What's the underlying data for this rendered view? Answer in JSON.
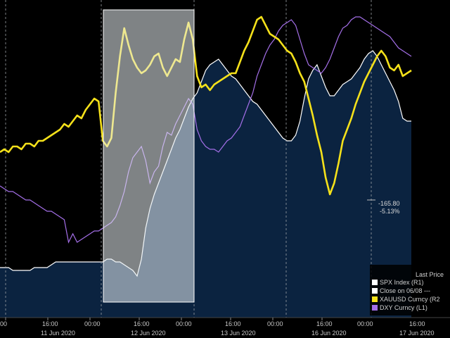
{
  "chart_data": {
    "type": "line",
    "background_color": "#000000",
    "grid": "dashed vertical day separators",
    "x_ticks": [
      "00",
      "16:00",
      "00:00",
      "16:00",
      "00:00",
      "16:00",
      "00:00",
      "16:00"
    ],
    "date_labels": [
      "11 Jun 2020",
      "12 Jun 2020",
      "13 Jun 2020",
      "16 Jun 2020",
      "17 Jun 2020"
    ],
    "series": [
      {
        "name": "SPX Index (R1)",
        "style": "area",
        "color": "#ffffff",
        "fill": "#0b2340",
        "values": [
          0.1,
          0.1,
          0.1,
          0.09,
          0.09,
          0.09,
          0.09,
          0.09,
          0.1,
          0.1,
          0.1,
          0.1,
          0.11,
          0.12,
          0.12,
          0.12,
          0.12,
          0.12,
          0.12,
          0.12,
          0.12,
          0.12,
          0.12,
          0.12,
          0.12,
          0.13,
          0.13,
          0.12,
          0.12,
          0.11,
          0.1,
          0.09,
          0.07,
          0.13,
          0.24,
          0.31,
          0.36,
          0.4,
          0.44,
          0.48,
          0.52,
          0.56,
          0.59,
          0.63,
          0.67,
          0.7,
          0.72,
          0.76,
          0.8,
          0.82,
          0.83,
          0.84,
          0.82,
          0.8,
          0.78,
          0.77,
          0.75,
          0.73,
          0.71,
          0.69,
          0.68,
          0.66,
          0.64,
          0.62,
          0.6,
          0.58,
          0.56,
          0.55,
          0.55,
          0.57,
          0.62,
          0.7,
          0.77,
          0.8,
          0.82,
          0.78,
          0.74,
          0.71,
          0.71,
          0.73,
          0.75,
          0.76,
          0.77,
          0.79,
          0.81,
          0.84,
          0.86,
          0.87,
          0.85,
          0.82,
          0.79,
          0.76,
          0.73,
          0.69,
          0.63,
          0.62,
          0.62
        ]
      },
      {
        "name": "Close on 06/08",
        "style": "dashed line",
        "color": "#ffffff",
        "values": []
      },
      {
        "name": "XAUUSD Curncy (R2)",
        "style": "line",
        "color": "#f5e11a",
        "values": [
          0.51,
          0.52,
          0.51,
          0.53,
          0.53,
          0.52,
          0.54,
          0.54,
          0.53,
          0.55,
          0.55,
          0.56,
          0.57,
          0.58,
          0.59,
          0.61,
          0.6,
          0.62,
          0.64,
          0.63,
          0.66,
          0.68,
          0.7,
          0.69,
          0.55,
          0.53,
          0.56,
          0.72,
          0.85,
          0.95,
          0.89,
          0.84,
          0.81,
          0.79,
          0.8,
          0.82,
          0.85,
          0.86,
          0.81,
          0.78,
          0.81,
          0.84,
          0.83,
          0.91,
          0.97,
          0.91,
          0.78,
          0.74,
          0.75,
          0.73,
          0.75,
          0.76,
          0.77,
          0.78,
          0.79,
          0.79,
          0.83,
          0.87,
          0.9,
          0.94,
          0.98,
          0.99,
          0.96,
          0.93,
          0.92,
          0.91,
          0.89,
          0.87,
          0.86,
          0.83,
          0.79,
          0.76,
          0.7,
          0.64,
          0.57,
          0.51,
          0.42,
          0.36,
          0.4,
          0.47,
          0.55,
          0.59,
          0.63,
          0.68,
          0.72,
          0.76,
          0.79,
          0.82,
          0.85,
          0.87,
          0.85,
          0.81,
          0.8,
          0.82,
          0.78,
          0.79,
          0.8
        ]
      },
      {
        "name": "DXY Curncy (L1)",
        "style": "line",
        "color": "#a46fe8",
        "values": [
          0.39,
          0.38,
          0.37,
          0.37,
          0.36,
          0.35,
          0.34,
          0.34,
          0.33,
          0.32,
          0.31,
          0.3,
          0.3,
          0.29,
          0.28,
          0.27,
          0.19,
          0.22,
          0.19,
          0.2,
          0.21,
          0.22,
          0.23,
          0.23,
          0.24,
          0.25,
          0.26,
          0.28,
          0.32,
          0.37,
          0.44,
          0.49,
          0.51,
          0.53,
          0.48,
          0.4,
          0.44,
          0.46,
          0.53,
          0.58,
          0.57,
          0.61,
          0.64,
          0.67,
          0.7,
          0.68,
          0.59,
          0.55,
          0.53,
          0.52,
          0.52,
          0.51,
          0.53,
          0.55,
          0.56,
          0.58,
          0.6,
          0.64,
          0.68,
          0.72,
          0.78,
          0.82,
          0.86,
          0.89,
          0.91,
          0.94,
          0.96,
          0.97,
          0.98,
          0.96,
          0.91,
          0.86,
          0.82,
          0.81,
          0.8,
          0.79,
          0.81,
          0.84,
          0.88,
          0.92,
          0.95,
          0.96,
          0.98,
          0.99,
          0.99,
          0.98,
          0.97,
          0.96,
          0.95,
          0.94,
          0.93,
          0.92,
          0.9,
          0.88,
          0.87,
          0.86,
          0.85
        ]
      }
    ],
    "readout": [
      "-165.80",
      "-5.13%"
    ],
    "legend": {
      "title": "Last Price",
      "position": "bottom-right",
      "entries": [
        {
          "label": "SPX Index  (R1)",
          "color": "#ffffff"
        },
        {
          "label": "Close on 06/08 ---",
          "color": "#ffffff"
        },
        {
          "label": "XAUUSD Curncy  (R2",
          "color": "#f5e11a"
        },
        {
          "label": "DXY Curncy  (L1)",
          "color": "#a46fe8"
        }
      ]
    },
    "highlight_box": {
      "present": true,
      "fill": "#e8eef2",
      "opacity": 0.55
    }
  }
}
